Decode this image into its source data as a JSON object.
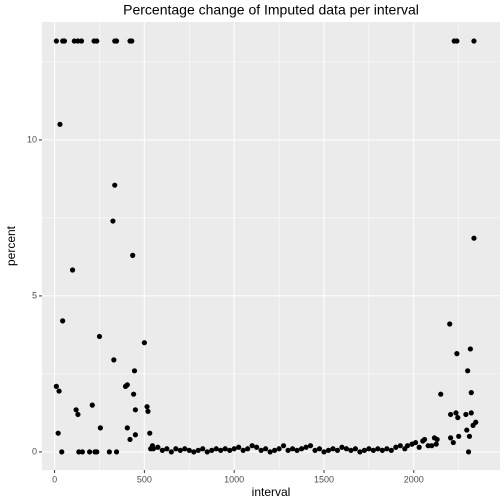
{
  "chart_data": {
    "type": "scatter",
    "title": "Percentage change of Imputed data per interval",
    "x_label": "interval",
    "y_label": "percent",
    "color": "#000000",
    "grid": true,
    "xlim": [
      -70,
      2480
    ],
    "ylim": [
      -0.58,
      13.78
    ],
    "xticks": [
      0,
      500,
      1000,
      1500,
      2000
    ],
    "yticks": [
      0,
      5,
      10
    ],
    "x_minor_ticks": [
      250,
      750,
      1250,
      1750,
      2250
    ],
    "y_minor_ticks": [
      2.5,
      7.5,
      12.5
    ],
    "x": [
      10,
      45,
      55,
      110,
      130,
      150,
      220,
      235,
      335,
      345,
      420,
      430,
      2225,
      2240,
      2335,
      30,
      10,
      25,
      20,
      45,
      40,
      100,
      120,
      130,
      135,
      155,
      195,
      210,
      225,
      235,
      250,
      255,
      305,
      325,
      335,
      330,
      345,
      395,
      405,
      405,
      420,
      435,
      440,
      445,
      450,
      450,
      500,
      515,
      520,
      530,
      535,
      545,
      550,
      575,
      600,
      625,
      650,
      675,
      700,
      725,
      750,
      775,
      800,
      825,
      850,
      875,
      900,
      925,
      950,
      975,
      1000,
      1025,
      1050,
      1075,
      1100,
      1125,
      1150,
      1175,
      1200,
      1225,
      1250,
      1275,
      1300,
      1325,
      1350,
      1375,
      1400,
      1425,
      1450,
      1475,
      1500,
      1525,
      1550,
      1575,
      1600,
      1625,
      1650,
      1675,
      1700,
      1725,
      1750,
      1775,
      1800,
      1825,
      1850,
      1875,
      1900,
      1925,
      1950,
      1990,
      2010,
      2030,
      2050,
      2080,
      1965,
      2060,
      2100,
      2115,
      2125,
      2130,
      2150,
      2200,
      2205,
      2205,
      2220,
      2235,
      2240,
      2245,
      2250,
      2290,
      2295,
      2300,
      2305,
      2310,
      2315,
      2320,
      2320,
      2330,
      2335,
      2345
    ],
    "values": [
      13.17,
      13.17,
      13.17,
      13.17,
      13.17,
      13.17,
      13.17,
      13.17,
      13.17,
      13.17,
      13.17,
      13.17,
      13.17,
      13.17,
      13.17,
      10.5,
      2.1,
      1.95,
      0.6,
      4.2,
      0,
      5.83,
      1.35,
      1.2,
      0,
      0,
      0,
      1.5,
      0,
      0,
      3.7,
      0.77,
      0,
      7.4,
      8.55,
      2.95,
      0,
      2.1,
      2.15,
      0.77,
      0.4,
      6.3,
      1.85,
      2.6,
      1.35,
      0.55,
      3.5,
      1.45,
      1.3,
      0.6,
      0.1,
      0.2,
      0.1,
      0.15,
      0.05,
      0.1,
      0,
      0.1,
      0.05,
      0.1,
      0.05,
      0,
      0.05,
      0.1,
      0,
      0.05,
      0.1,
      0.05,
      0.1,
      0.05,
      0.1,
      0.15,
      0.05,
      0.1,
      0.2,
      0.15,
      0.05,
      0.1,
      0,
      0.05,
      0.1,
      0.2,
      0.05,
      0.1,
      0.05,
      0.1,
      0.15,
      0.2,
      0.05,
      0.1,
      0,
      0.05,
      0.1,
      0.05,
      0.15,
      0.1,
      0.05,
      0.1,
      0,
      0.05,
      0.1,
      0.05,
      0.1,
      0.05,
      0.1,
      0.05,
      0.15,
      0.2,
      0.1,
      0.25,
      0.3,
      0.15,
      0.35,
      0.2,
      0.2,
      0.4,
      0.2,
      0.45,
      0.25,
      0.4,
      1.85,
      4.1,
      1.2,
      0.45,
      0.3,
      1.25,
      3.15,
      1.1,
      0.5,
      1.2,
      0.7,
      2.6,
      0,
      0.5,
      3.3,
      1.9,
      1.25,
      0.85,
      6.85,
      0.95
    ]
  }
}
